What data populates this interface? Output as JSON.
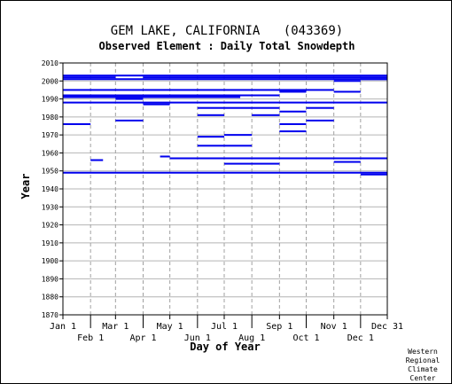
{
  "chart_data": {
    "type": "bar",
    "title": "GEM LAKE, CALIFORNIA",
    "station_id": "(043369)",
    "subtitle": "Observed Element : Daily Total Snowdepth",
    "xlabel": "Day of Year",
    "ylabel": "Year",
    "ylim": [
      1870,
      2010
    ],
    "y_ticks": [
      "1870",
      "1880",
      "1890",
      "1900",
      "1910",
      "1920",
      "1930",
      "1940",
      "1950",
      "1960",
      "1970",
      "1980",
      "1990",
      "2000",
      "2010"
    ],
    "x_ticks_top": [
      {
        "label": "Jan 1",
        "day": 1
      },
      {
        "label": "Mar 1",
        "day": 60
      },
      {
        "label": "May 1",
        "day": 121
      },
      {
        "label": "Jul 1",
        "day": 182
      },
      {
        "label": "Sep 1",
        "day": 244
      },
      {
        "label": "Nov 1",
        "day": 305
      },
      {
        "label": "Dec 31",
        "day": 365
      }
    ],
    "x_ticks_bottom": [
      {
        "label": "Feb 1",
        "day": 32
      },
      {
        "label": "Apr 1",
        "day": 91
      },
      {
        "label": "Jun 1",
        "day": 152
      },
      {
        "label": "Aug 1",
        "day": 213
      },
      {
        "label": "Oct 1",
        "day": 274
      },
      {
        "label": "Dec 1",
        "day": 335
      }
    ],
    "grid": true,
    "series_color": "#0000ee",
    "observations": [
      {
        "year": 2003,
        "start": 1,
        "end": 365
      },
      {
        "year": 2002,
        "start": 1,
        "end": 60
      },
      {
        "year": 2002,
        "start": 91,
        "end": 365
      },
      {
        "year": 2001,
        "start": 1,
        "end": 365
      },
      {
        "year": 2000,
        "start": 305,
        "end": 335
      },
      {
        "year": 2001,
        "start": 335,
        "end": 365
      },
      {
        "year": 1995,
        "start": 1,
        "end": 305
      },
      {
        "year": 1994,
        "start": 244,
        "end": 274
      },
      {
        "year": 1994,
        "start": 305,
        "end": 335
      },
      {
        "year": 1992,
        "start": 1,
        "end": 244
      },
      {
        "year": 1991,
        "start": 1,
        "end": 200
      },
      {
        "year": 1990,
        "start": 60,
        "end": 91
      },
      {
        "year": 1988,
        "start": 1,
        "end": 365
      },
      {
        "year": 1987,
        "start": 91,
        "end": 121
      },
      {
        "year": 1985,
        "start": 152,
        "end": 244
      },
      {
        "year": 1985,
        "start": 274,
        "end": 305
      },
      {
        "year": 1983,
        "start": 244,
        "end": 274
      },
      {
        "year": 1981,
        "start": 152,
        "end": 182
      },
      {
        "year": 1981,
        "start": 213,
        "end": 244
      },
      {
        "year": 1978,
        "start": 60,
        "end": 91
      },
      {
        "year": 1978,
        "start": 274,
        "end": 305
      },
      {
        "year": 1976,
        "start": 1,
        "end": 32
      },
      {
        "year": 1976,
        "start": 244,
        "end": 274
      },
      {
        "year": 1972,
        "start": 244,
        "end": 274
      },
      {
        "year": 1970,
        "start": 182,
        "end": 213
      },
      {
        "year": 1969,
        "start": 152,
        "end": 182
      },
      {
        "year": 1964,
        "start": 152,
        "end": 213
      },
      {
        "year": 1958,
        "start": 110,
        "end": 121
      },
      {
        "year": 1957,
        "start": 121,
        "end": 365
      },
      {
        "year": 1956,
        "start": 32,
        "end": 46
      },
      {
        "year": 1955,
        "start": 305,
        "end": 335
      },
      {
        "year": 1954,
        "start": 182,
        "end": 244
      },
      {
        "year": 1949,
        "start": 1,
        "end": 365
      },
      {
        "year": 1948,
        "start": 335,
        "end": 365
      }
    ]
  },
  "credit": [
    "Western",
    "Regional",
    "Climate",
    "Center"
  ]
}
